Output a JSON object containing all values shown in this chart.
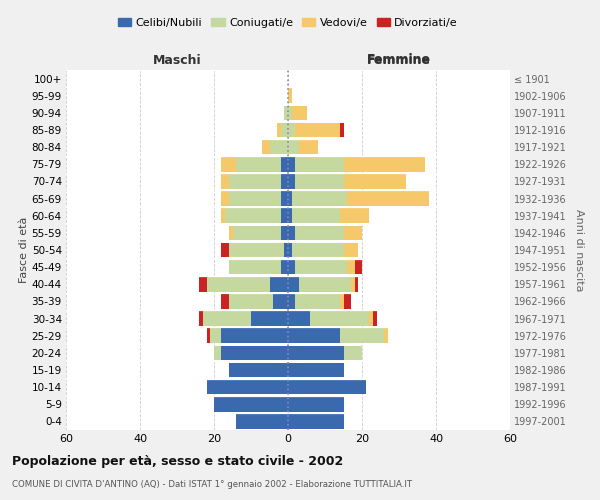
{
  "age_groups": [
    "0-4",
    "5-9",
    "10-14",
    "15-19",
    "20-24",
    "25-29",
    "30-34",
    "35-39",
    "40-44",
    "45-49",
    "50-54",
    "55-59",
    "60-64",
    "65-69",
    "70-74",
    "75-79",
    "80-84",
    "85-89",
    "90-94",
    "95-99",
    "100+"
  ],
  "birth_years": [
    "1997-2001",
    "1992-1996",
    "1987-1991",
    "1982-1986",
    "1977-1981",
    "1972-1976",
    "1967-1971",
    "1962-1966",
    "1957-1961",
    "1952-1956",
    "1947-1951",
    "1942-1946",
    "1937-1941",
    "1932-1936",
    "1927-1931",
    "1922-1926",
    "1917-1921",
    "1912-1916",
    "1907-1911",
    "1902-1906",
    "≤ 1901"
  ],
  "males": {
    "celibi": [
      14,
      20,
      22,
      16,
      18,
      18,
      10,
      4,
      5,
      2,
      1,
      2,
      2,
      2,
      2,
      2,
      0,
      0,
      0,
      0,
      0
    ],
    "coniugati": [
      0,
      0,
      0,
      0,
      2,
      3,
      13,
      12,
      17,
      14,
      15,
      13,
      15,
      14,
      14,
      12,
      5,
      2,
      1,
      0,
      0
    ],
    "vedovi": [
      0,
      0,
      0,
      0,
      0,
      0,
      0,
      0,
      0,
      0,
      0,
      1,
      1,
      2,
      2,
      4,
      2,
      1,
      0,
      0,
      0
    ],
    "divorziati": [
      0,
      0,
      0,
      0,
      0,
      1,
      1,
      2,
      2,
      0,
      2,
      0,
      0,
      0,
      0,
      0,
      0,
      0,
      0,
      0,
      0
    ]
  },
  "females": {
    "nubili": [
      15,
      15,
      21,
      15,
      15,
      14,
      6,
      2,
      3,
      2,
      1,
      2,
      1,
      1,
      2,
      2,
      0,
      0,
      0,
      0,
      0
    ],
    "coniugate": [
      0,
      0,
      0,
      0,
      5,
      12,
      16,
      12,
      14,
      14,
      14,
      13,
      13,
      15,
      13,
      13,
      3,
      2,
      1,
      0,
      0
    ],
    "vedove": [
      0,
      0,
      0,
      0,
      0,
      1,
      1,
      1,
      1,
      2,
      4,
      5,
      8,
      22,
      17,
      22,
      5,
      12,
      4,
      1,
      0
    ],
    "divorziate": [
      0,
      0,
      0,
      0,
      0,
      0,
      1,
      2,
      1,
      2,
      0,
      0,
      0,
      0,
      0,
      0,
      0,
      1,
      0,
      0,
      0
    ]
  },
  "colors": {
    "celibi": "#3a6aad",
    "coniugati": "#c5d8a0",
    "vedovi": "#f5c96a",
    "divorziati": "#cc2222"
  },
  "xlim": 60,
  "title": "Popolazione per età, sesso e stato civile - 2002",
  "subtitle": "COMUNE DI CIVITA D'ANTINO (AQ) - Dati ISTAT 1° gennaio 2002 - Elaborazione TUTTITALIA.IT",
  "xlabel_left": "Maschi",
  "xlabel_right": "Femmine",
  "ylabel_left": "Fasce di età",
  "ylabel_right": "Anni di nascita",
  "bg_color": "#f0f0f0",
  "plot_bg": "#ffffff"
}
